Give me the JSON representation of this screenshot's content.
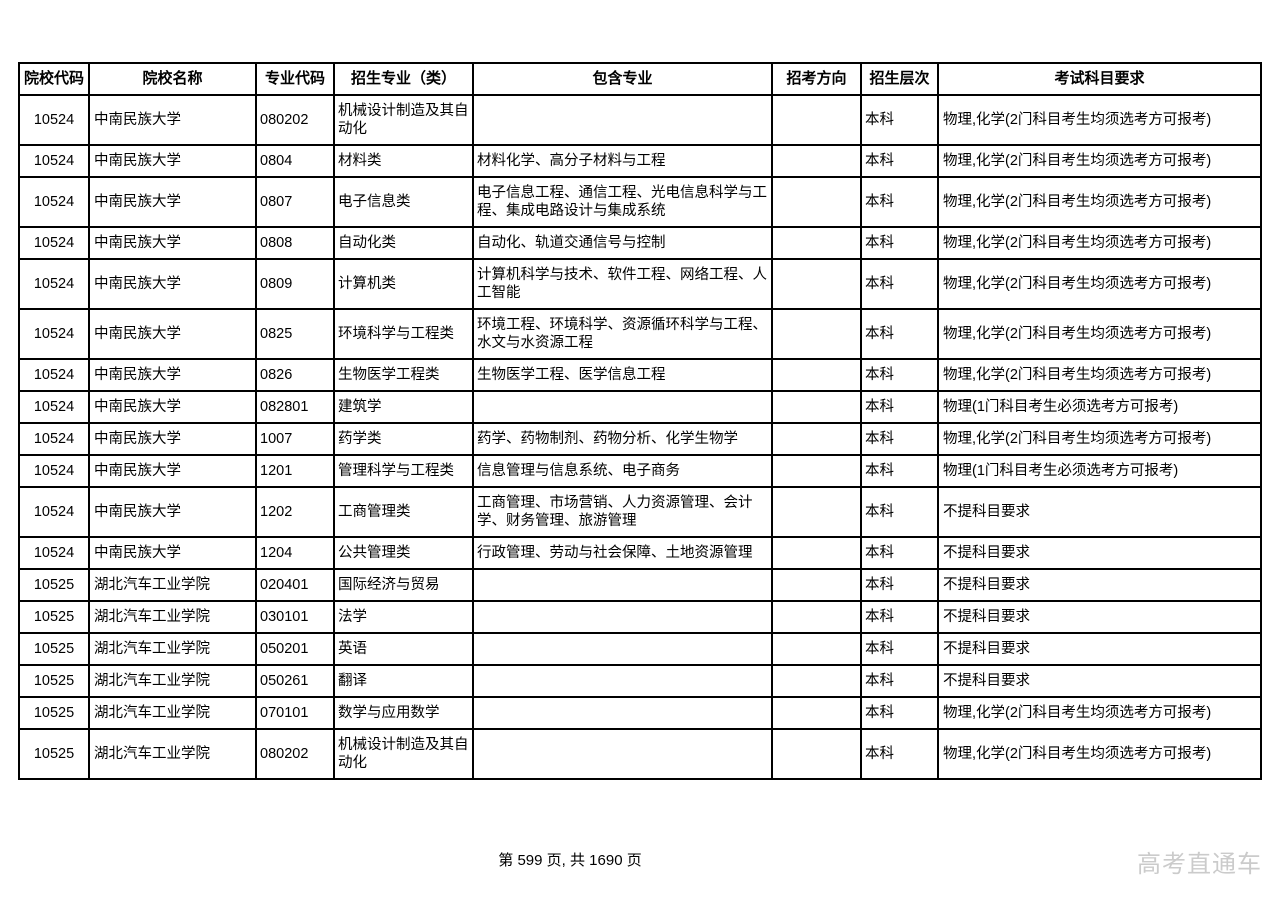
{
  "page": {
    "footer": "第 599 页, 共 1690 页",
    "watermark": "高考直通车"
  },
  "table": {
    "headers": [
      "院校代码",
      "院校名称",
      "专业代码",
      "招生专业（类）",
      "包含专业",
      "招考方向",
      "招生层次",
      "考试科目要求"
    ],
    "column_names": [
      "college-code",
      "college-name",
      "major-code",
      "major-name",
      "included-majors",
      "admission-direction",
      "admission-level",
      "subject-requirements"
    ],
    "rows": [
      [
        "10524",
        "中南民族大学",
        "080202",
        "机械设计制造及其自动化",
        "",
        "",
        "本科",
        "物理,化学(2门科目考生均须选考方可报考)"
      ],
      [
        "10524",
        "中南民族大学",
        "0804",
        "材料类",
        "材料化学、高分子材料与工程",
        "",
        "本科",
        "物理,化学(2门科目考生均须选考方可报考)"
      ],
      [
        "10524",
        "中南民族大学",
        "0807",
        "电子信息类",
        "电子信息工程、通信工程、光电信息科学与工程、集成电路设计与集成系统",
        "",
        "本科",
        "物理,化学(2门科目考生均须选考方可报考)"
      ],
      [
        "10524",
        "中南民族大学",
        "0808",
        "自动化类",
        "自动化、轨道交通信号与控制",
        "",
        "本科",
        "物理,化学(2门科目考生均须选考方可报考)"
      ],
      [
        "10524",
        "中南民族大学",
        "0809",
        "计算机类",
        "计算机科学与技术、软件工程、网络工程、人工智能",
        "",
        "本科",
        "物理,化学(2门科目考生均须选考方可报考)"
      ],
      [
        "10524",
        "中南民族大学",
        "0825",
        "环境科学与工程类",
        "环境工程、环境科学、资源循环科学与工程、水文与水资源工程",
        "",
        "本科",
        "物理,化学(2门科目考生均须选考方可报考)"
      ],
      [
        "10524",
        "中南民族大学",
        "0826",
        "生物医学工程类",
        "生物医学工程、医学信息工程",
        "",
        "本科",
        "物理,化学(2门科目考生均须选考方可报考)"
      ],
      [
        "10524",
        "中南民族大学",
        "082801",
        "建筑学",
        "",
        "",
        "本科",
        "物理(1门科目考生必须选考方可报考)"
      ],
      [
        "10524",
        "中南民族大学",
        "1007",
        "药学类",
        "药学、药物制剂、药物分析、化学生物学",
        "",
        "本科",
        "物理,化学(2门科目考生均须选考方可报考)"
      ],
      [
        "10524",
        "中南民族大学",
        "1201",
        "管理科学与工程类",
        "信息管理与信息系统、电子商务",
        "",
        "本科",
        "物理(1门科目考生必须选考方可报考)"
      ],
      [
        "10524",
        "中南民族大学",
        "1202",
        "工商管理类",
        "工商管理、市场营销、人力资源管理、会计学、财务管理、旅游管理",
        "",
        "本科",
        "不提科目要求"
      ],
      [
        "10524",
        "中南民族大学",
        "1204",
        "公共管理类",
        "行政管理、劳动与社会保障、土地资源管理",
        "",
        "本科",
        "不提科目要求"
      ],
      [
        "10525",
        "湖北汽车工业学院",
        "020401",
        "国际经济与贸易",
        "",
        "",
        "本科",
        "不提科目要求"
      ],
      [
        "10525",
        "湖北汽车工业学院",
        "030101",
        "法学",
        "",
        "",
        "本科",
        "不提科目要求"
      ],
      [
        "10525",
        "湖北汽车工业学院",
        "050201",
        "英语",
        "",
        "",
        "本科",
        "不提科目要求"
      ],
      [
        "10525",
        "湖北汽车工业学院",
        "050261",
        "翻译",
        "",
        "",
        "本科",
        "不提科目要求"
      ],
      [
        "10525",
        "湖北汽车工业学院",
        "070101",
        "数学与应用数学",
        "",
        "",
        "本科",
        "物理,化学(2门科目考生均须选考方可报考)"
      ],
      [
        "10525",
        "湖北汽车工业学院",
        "080202",
        "机械设计制造及其自动化",
        "",
        "",
        "本科",
        "物理,化学(2门科目考生均须选考方可报考)"
      ]
    ]
  }
}
